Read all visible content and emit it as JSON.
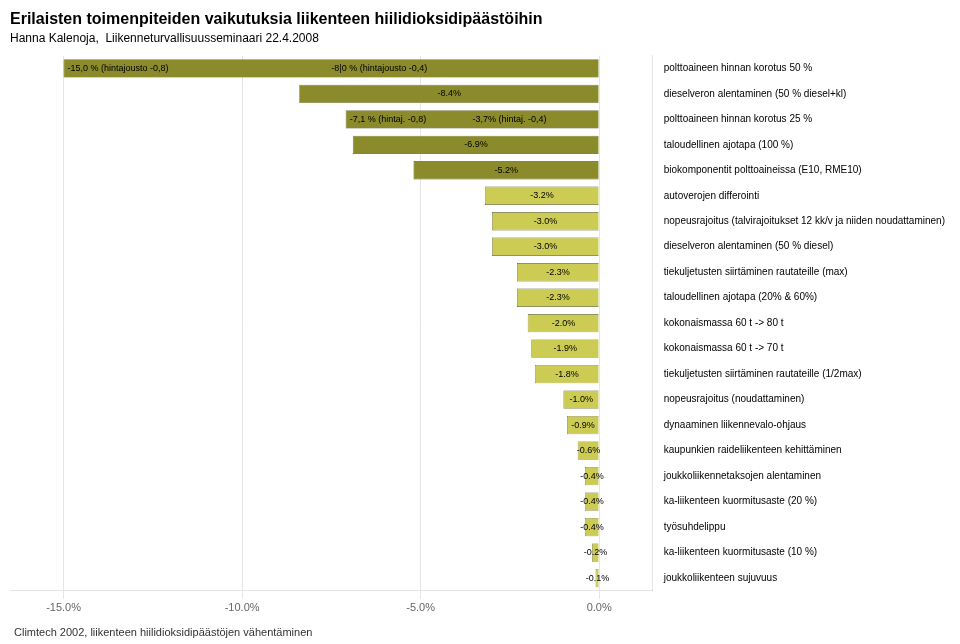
{
  "chart_data": {
    "type": "bar",
    "orientation": "horizontal",
    "title": "Erilaisten toimenpiteiden vaikutuksia liikenteen hiilidioksidipäästöihin",
    "subtitle": "Hanna Kalenoja,  Liikenneturvallisuusseminaari 22.4.2008",
    "footer": "Climtech 2002, liikenteen hiilidioksidipäästöjen vähentäminen",
    "categories": [
      "polttoaineen hinnan korotus 50 %",
      "dieselveron alentaminen (50 % diesel+kl)",
      "polttoaineen hinnan korotus 25 %",
      "taloudellinen ajotapa (100 %)",
      "biokomponentit polttoaineissa (E10, RME10)",
      "autoverojen differointi",
      "nopeusrajoitus (talvirajoitukset 12 kk/v ja niiden noudattaminen)",
      "dieselveron alentaminen (50 % diesel)",
      "tiekuljetusten siirtäminen rautateille (max)",
      "taloudellinen ajotapa (20% & 60%)",
      "kokonaismassa 60 t -> 80 t",
      "kokonaismassa 60 t -> 70 t",
      "tiekuljetusten siirtäminen rautateille (1/2max)",
      "nopeusrajoitus (noudattaminen)",
      "dynaaminen liikennevalo-ohjaus",
      "kaupunkien raideliikenteen kehittäminen",
      "joukkoliikennetaksojen alentaminen",
      "ka-liikenteen kuormitusaste (20 %)",
      "työsuhdelippu",
      "ka-liikenteen kuormitusaste (10 %)",
      "joukkoliikenteen sujuvuus"
    ],
    "values": [
      -15.0,
      -8.4,
      -7.1,
      -6.9,
      -5.2,
      -3.2,
      -3.0,
      -3.0,
      -2.3,
      -2.3,
      -2.0,
      -1.9,
      -1.8,
      -1.0,
      -0.9,
      -0.6,
      -0.4,
      -0.4,
      -0.4,
      -0.2,
      -0.1
    ],
    "data_labels": true,
    "value_labels": [
      "-15,0 % (hintajousto -0,8)",
      "-8.4%",
      "-7,1 % (hintaj. -0,8)",
      "-6.9%",
      "-5.2%",
      "-3.2%",
      "-3.0%",
      "-3.0%",
      "-2.3%",
      "-2.3%",
      "-2.0%",
      "-1.9%",
      "-1.8%",
      "-1.0%",
      "-0.9%",
      "-0.6%",
      "-0.4%",
      "-0.4%",
      "-0.4%",
      "-0.2%",
      "-0.1%"
    ],
    "annotations": [
      {
        "category": "polttoaineen hinnan korotus 50 %",
        "text": "-8|0 % (hintajousto -0,4)"
      },
      {
        "category": "polttoaineen hinnan korotus 25 %",
        "text": "-3,7% (hintaj. -0,4)"
      }
    ],
    "colors": [
      "#8B8B2B",
      "#8B8B2B",
      "#8B8B2B",
      "#8B8B2B",
      "#8B8B2B",
      "#CCCC55",
      "#CCCC55",
      "#CCCC55",
      "#CCCC55",
      "#CCCC55",
      "#CCCC55",
      "#CCCC55",
      "#CCCC55",
      "#CCCC55",
      "#CCCC55",
      "#CCCC55",
      "#CCCC55",
      "#CCCC55",
      "#CCCC55",
      "#CCCC55",
      "#CCCC55"
    ],
    "xlim": [
      -16.5,
      1.5
    ],
    "xticks": [
      {
        "value": -15.0,
        "label": "-15.0%"
      },
      {
        "value": -10.0,
        "label": "-10.0%"
      },
      {
        "value": -5.0,
        "label": "-5.0%"
      },
      {
        "value": 0.0,
        "label": "0.0%"
      }
    ],
    "grid": true
  }
}
